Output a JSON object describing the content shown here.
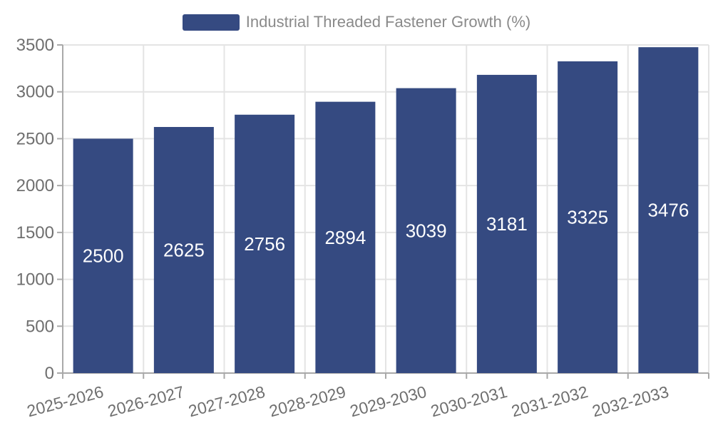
{
  "chart_data": {
    "type": "bar",
    "title": "Industrial Threaded Fastener Growth (%)",
    "categories": [
      "2025-2026",
      "2026-2027",
      "2027-2028",
      "2028-2029",
      "2029-2030",
      "2030-2031",
      "2031-2032",
      "2032-2033"
    ],
    "values": [
      2500,
      2625,
      2756,
      2894,
      3039,
      3181,
      3325,
      3476
    ],
    "value_labels": [
      "2500",
      "2625",
      "2756",
      "2894",
      "3039",
      "3181",
      "3325",
      "3476"
    ],
    "xlabel": "",
    "ylabel": "",
    "ylim": [
      0,
      3500
    ],
    "ytick_step": 500,
    "ytick_labels": [
      "0",
      "500",
      "1000",
      "1500",
      "2000",
      "2500",
      "3000",
      "3500"
    ],
    "x_label_rotation_deg": -15,
    "grid": true,
    "legend_position": "top-center",
    "colors": {
      "bar": "#354a81",
      "value_label": "#ffffff",
      "grid_line": "#e4e4e4",
      "axis_line": "#a9a9a9",
      "tick_label": "#6f6f6f",
      "legend_text": "#8a8a8a",
      "background": "#ffffff"
    }
  }
}
